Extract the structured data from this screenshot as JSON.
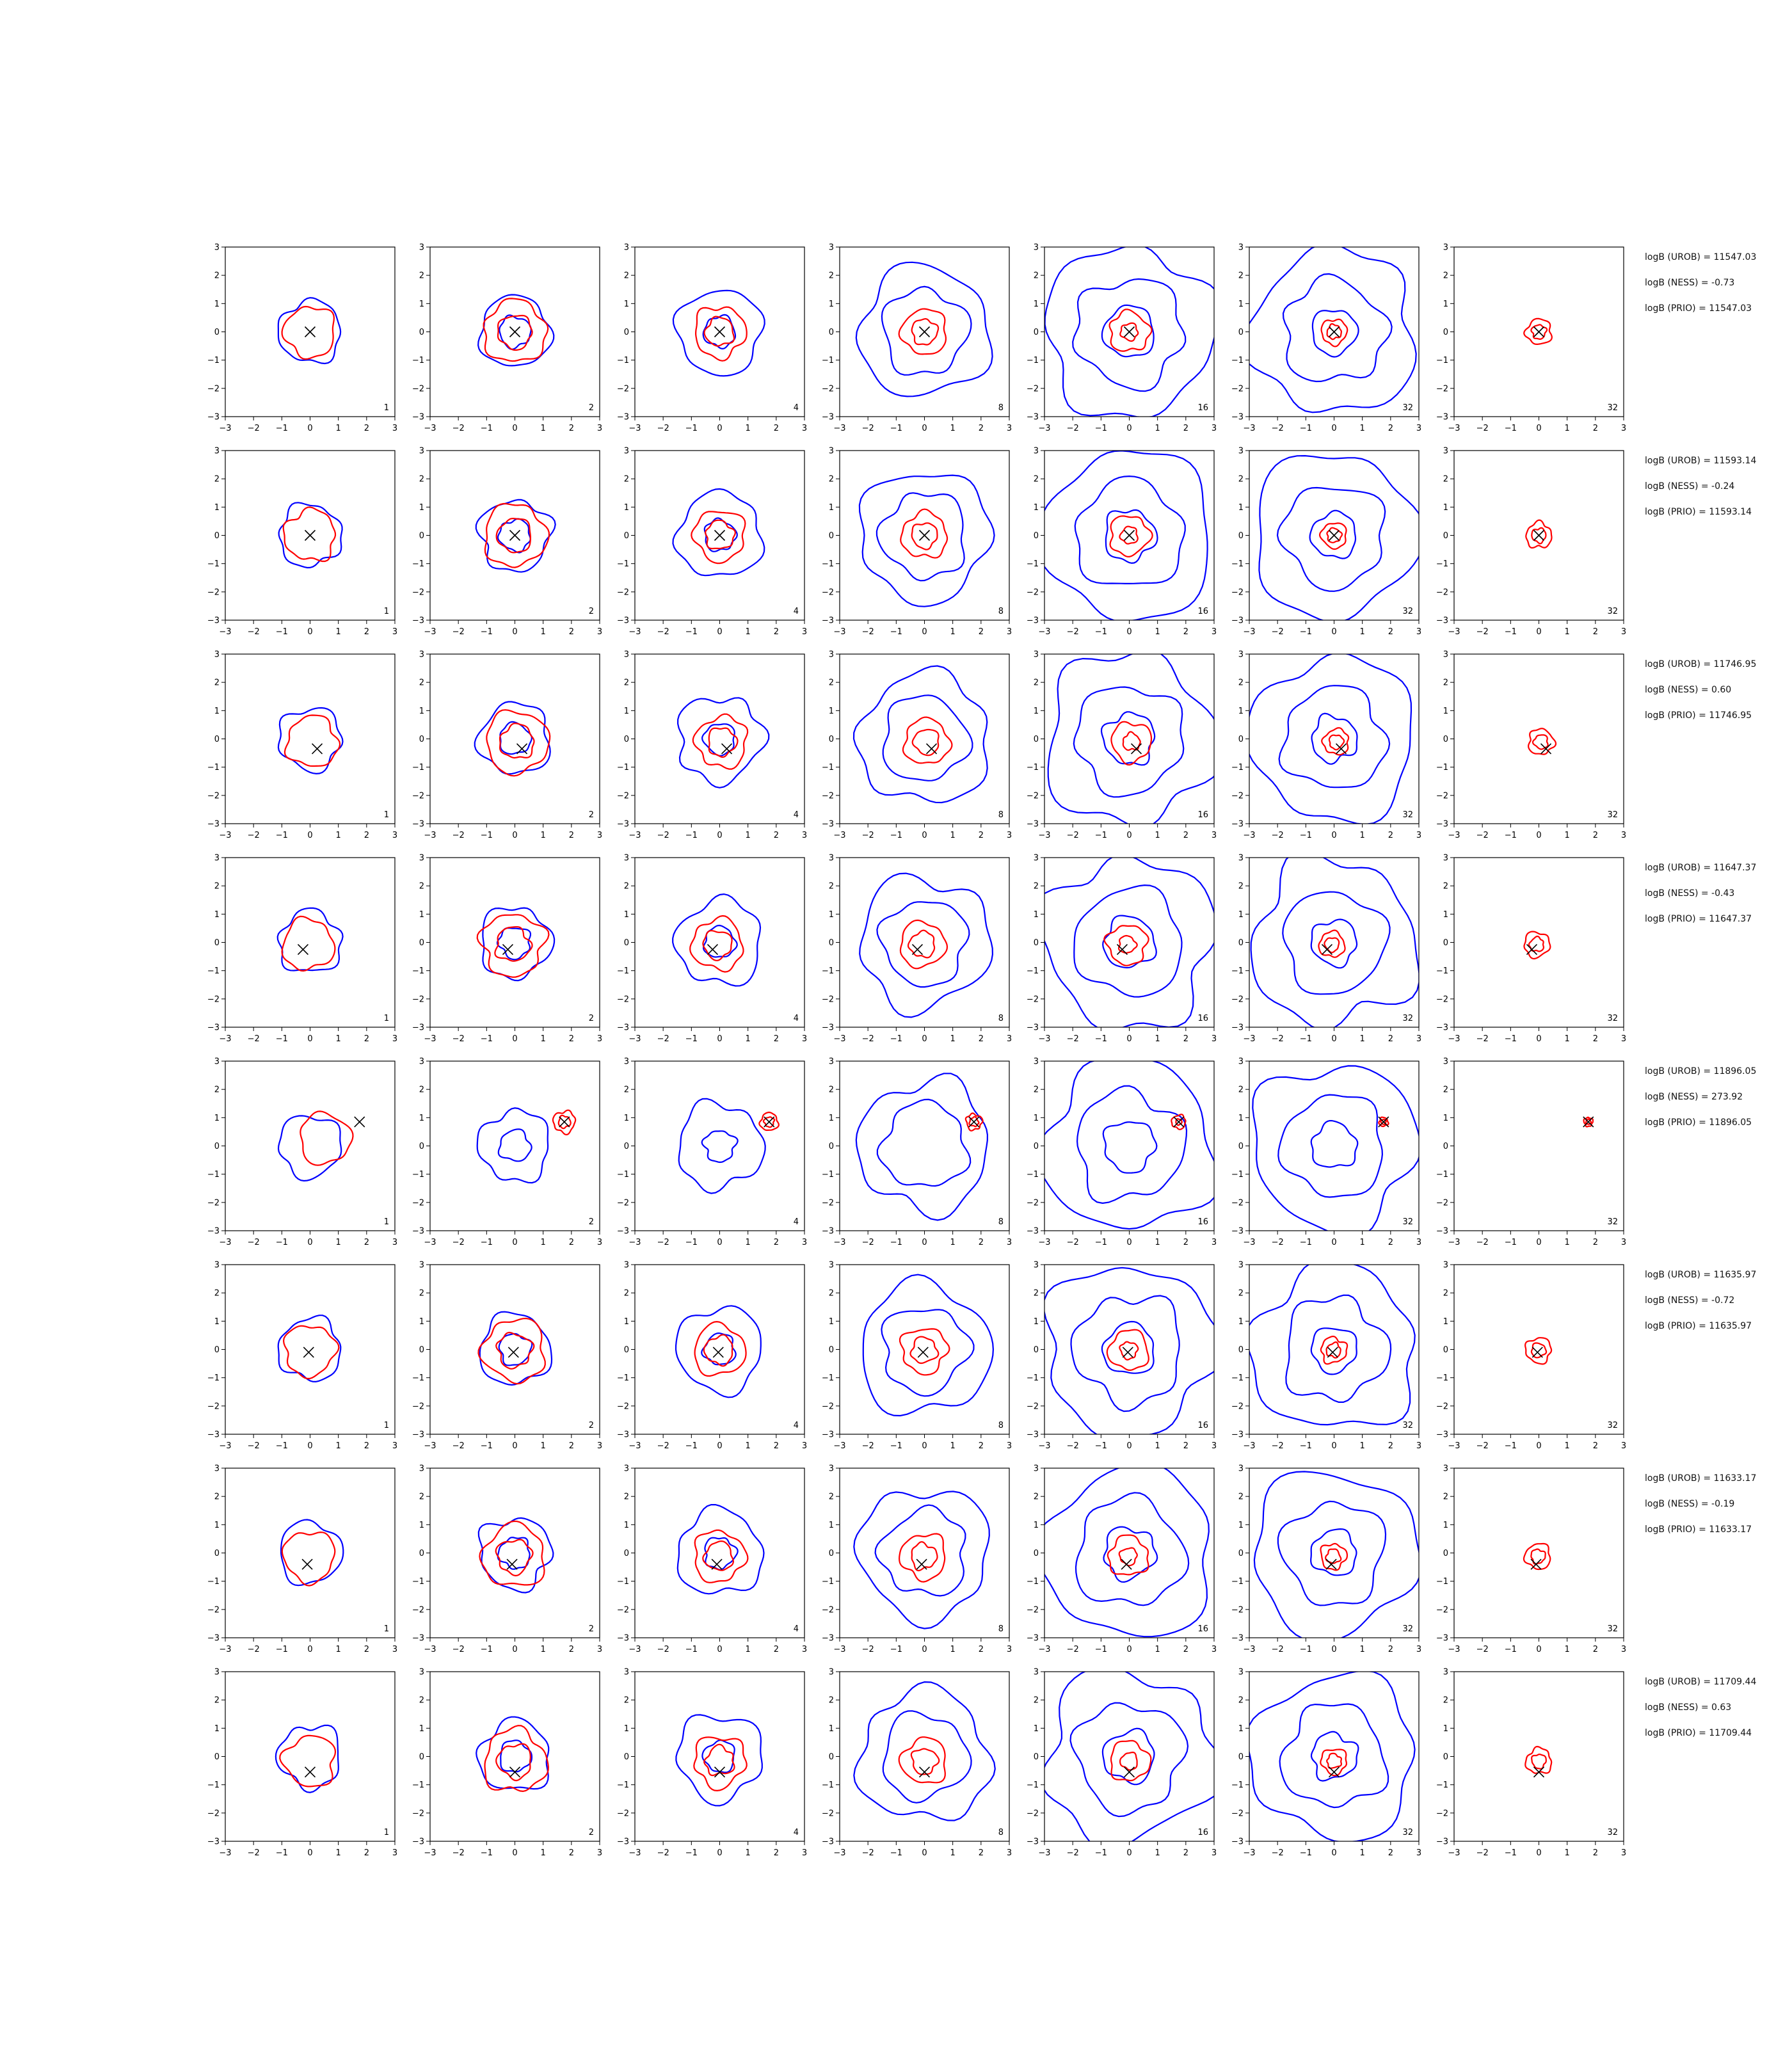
{
  "chart_data": {
    "type": "contour-grid",
    "rows": 8,
    "columns": 7,
    "xlim": [
      -3,
      3
    ],
    "ylim": [
      -3,
      3
    ],
    "ticks": [
      -3,
      -2,
      -1,
      0,
      1,
      2,
      3
    ],
    "colors": {
      "reference": "#0000ff",
      "estimate": "#ff0000",
      "marker": "#000000"
    },
    "panel_labels": [
      "1",
      "2",
      "4",
      "8",
      "16",
      "32",
      "32"
    ],
    "panel_rings": {
      "blue": [
        [
          1.1
        ],
        [
          0.55,
          1.25
        ],
        [
          0.55,
          1.5
        ],
        [
          1.5,
          2.3
        ],
        [
          0.9,
          1.9,
          3.0
        ],
        [
          0.8,
          1.8,
          2.9
        ],
        []
      ],
      "red": [
        [
          0.9
        ],
        [
          1.1,
          0.6
        ],
        [
          0.9,
          0.5
        ],
        [
          0.8,
          0.45
        ],
        [
          0.7,
          0.3
        ],
        [
          0.45,
          0.25
        ],
        [
          0.45,
          0.25
        ]
      ]
    },
    "rows_data": [
      {
        "marker": [
          0.0,
          0.0
        ],
        "stats": [
          "logB (UROB) = 11547.03",
          "logB (NESS) = -0.73",
          "logB (PRIO) = 11547.03"
        ]
      },
      {
        "marker": [
          0.0,
          0.0
        ],
        "stats": [
          "logB (UROB) = 11593.14",
          "logB (NESS) = -0.24",
          "logB (PRIO) = 11593.14"
        ]
      },
      {
        "marker": [
          0.25,
          -0.35
        ],
        "stats": [
          "logB (UROB) = 11746.95",
          "logB (NESS) = 0.60",
          "logB (PRIO) = 11746.95"
        ]
      },
      {
        "marker": [
          -0.25,
          -0.25
        ],
        "stats": [
          "logB (UROB) = 11647.37",
          "logB (NESS) = -0.43",
          "logB (PRIO) = 11647.37"
        ]
      },
      {
        "marker": [
          1.75,
          0.85
        ],
        "stats": [
          "logB (UROB) = 11896.05",
          "logB (NESS) = 273.92",
          "logB (PRIO) = 11896.05"
        ]
      },
      {
        "marker": [
          -0.05,
          -0.1
        ],
        "stats": [
          "logB (UROB) = 11635.97",
          "logB (NESS) = -0.72",
          "logB (PRIO) = 11635.97"
        ]
      },
      {
        "marker": [
          -0.1,
          -0.4
        ],
        "stats": [
          "logB (UROB) = 11633.17",
          "logB (NESS) = -0.19",
          "logB (PRIO) = 11633.17"
        ]
      },
      {
        "marker": [
          0.0,
          -0.55
        ],
        "stats": [
          "logB (UROB) = 11709.44",
          "logB (NESS) = 0.63",
          "logB (PRIO) = 11709.44"
        ]
      }
    ]
  }
}
